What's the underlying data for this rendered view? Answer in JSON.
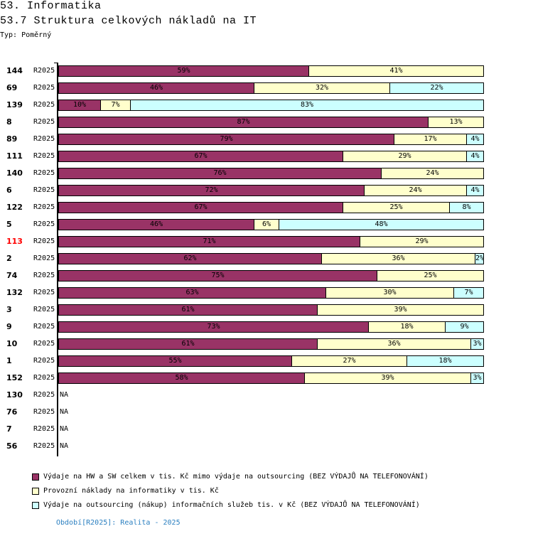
{
  "header": {
    "title": "53. Informatika",
    "subtitle": "53.7 Struktura celkových nákladů na IT",
    "type": "Typ: Poměrný"
  },
  "colors": {
    "hw_sw": "#993366",
    "provozni": "#ffffcc",
    "outsourcing": "#ccffff",
    "highlight": "#ff0000"
  },
  "chart_data": {
    "type": "bar",
    "stacked": true,
    "orientation": "horizontal",
    "unit": "%",
    "xlim": [
      0,
      100
    ],
    "series_names": [
      "Výdaje na HW a SW celkem v tis. Kč mimo výdaje na outsourcing (BEZ VÝDAJŮ NA TELEFONOVÁNÍ)",
      "Provozní náklady na informatiky v tis. Kč",
      "Výdaje na outsourcing (nákup) informačních služeb tis. v Kč (BEZ VÝDAJŮ NA TELEFONOVÁNÍ)"
    ],
    "rows": [
      {
        "id": "144",
        "period": "R2025",
        "values": [
          59,
          41,
          0
        ]
      },
      {
        "id": "69",
        "period": "R2025",
        "values": [
          46,
          32,
          22
        ]
      },
      {
        "id": "139",
        "period": "R2025",
        "values": [
          10,
          7,
          83
        ]
      },
      {
        "id": "8",
        "period": "R2025",
        "values": [
          87,
          13,
          0
        ]
      },
      {
        "id": "89",
        "period": "R2025",
        "values": [
          79,
          17,
          4
        ]
      },
      {
        "id": "111",
        "period": "R2025",
        "values": [
          67,
          29,
          4
        ]
      },
      {
        "id": "140",
        "period": "R2025",
        "values": [
          76,
          24,
          0
        ]
      },
      {
        "id": "6",
        "period": "R2025",
        "values": [
          72,
          24,
          4
        ]
      },
      {
        "id": "122",
        "period": "R2025",
        "values": [
          67,
          25,
          8
        ]
      },
      {
        "id": "5",
        "period": "R2025",
        "values": [
          46,
          6,
          48
        ]
      },
      {
        "id": "113",
        "period": "R2025",
        "values": [
          71,
          29,
          0
        ],
        "highlight": true
      },
      {
        "id": "2",
        "period": "R2025",
        "values": [
          62,
          36,
          2
        ]
      },
      {
        "id": "74",
        "period": "R2025",
        "values": [
          75,
          25,
          0
        ]
      },
      {
        "id": "132",
        "period": "R2025",
        "values": [
          63,
          30,
          7
        ]
      },
      {
        "id": "3",
        "period": "R2025",
        "values": [
          61,
          39,
          0
        ]
      },
      {
        "id": "9",
        "period": "R2025",
        "values": [
          73,
          18,
          9
        ]
      },
      {
        "id": "10",
        "period": "R2025",
        "values": [
          61,
          36,
          3
        ]
      },
      {
        "id": "1",
        "period": "R2025",
        "values": [
          55,
          27,
          18
        ]
      },
      {
        "id": "152",
        "period": "R2025",
        "values": [
          58,
          39,
          3
        ]
      },
      {
        "id": "130",
        "period": "R2025",
        "values": null,
        "na": "NA"
      },
      {
        "id": "76",
        "period": "R2025",
        "values": null,
        "na": "NA"
      },
      {
        "id": "7",
        "period": "R2025",
        "values": null,
        "na": "NA"
      },
      {
        "id": "56",
        "period": "R2025",
        "values": null,
        "na": "NA"
      }
    ]
  },
  "footer": "Období[R2025]: Realita - 2025"
}
